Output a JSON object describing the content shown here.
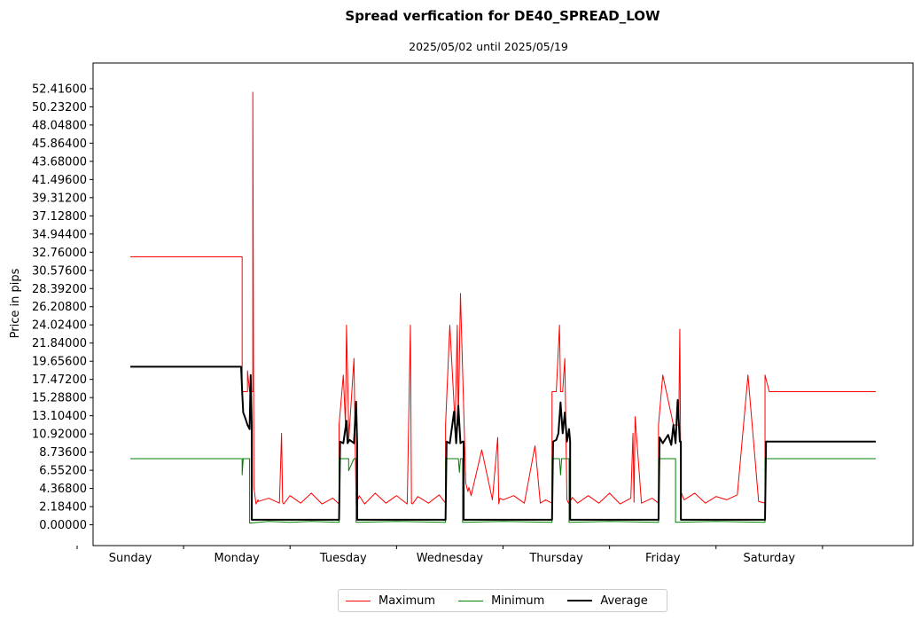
{
  "chart_data": {
    "type": "line",
    "title": "Spread verfication for DE40_SPREAD_LOW",
    "subtitle": "2025/05/02 until 2025/05/19",
    "xlabel": "",
    "ylabel": "Price in pips",
    "ylim": [
      -2.5,
      55.5
    ],
    "yticks": [
      "0.00000",
      "2.18400",
      "4.36800",
      "6.55200",
      "8.73600",
      "10.92000",
      "13.10400",
      "15.28800",
      "17.47200",
      "19.65600",
      "21.84000",
      "24.02400",
      "26.20800",
      "28.39200",
      "30.57600",
      "32.76000",
      "34.94400",
      "37.12800",
      "39.31200",
      "41.49600",
      "43.68000",
      "45.86400",
      "48.04800",
      "50.23200",
      "52.41600"
    ],
    "xlim": [
      -0.35,
      7.35
    ],
    "categories": [
      "Sunday",
      "Monday",
      "Tuesday",
      "Wednesday",
      "Thursday",
      "Friday",
      "Saturday"
    ],
    "grid": false,
    "legend_position": "bottom-center",
    "series": [
      {
        "name": "Maximum",
        "color": "#ff0000",
        "x": [
          0,
          1.05,
          1.05,
          1.08,
          1.1,
          1.1,
          1.12,
          1.15,
          1.15,
          1.16,
          1.18,
          1.2,
          1.2,
          1.3,
          1.4,
          1.42,
          1.43,
          1.44,
          1.5,
          1.6,
          1.7,
          1.8,
          1.9,
          1.96,
          1.96,
          2.0,
          2.02,
          2.03,
          2.05,
          2.05,
          2.1,
          2.12,
          2.13,
          2.15,
          2.2,
          2.3,
          2.4,
          2.5,
          2.6,
          2.63,
          2.64,
          2.65,
          2.7,
          2.8,
          2.9,
          2.96,
          2.96,
          3.0,
          3.05,
          3.07,
          3.08,
          3.1,
          3.15,
          3.17,
          3.18,
          3.2,
          3.3,
          3.4,
          3.45,
          3.46,
          3.47,
          3.5,
          3.6,
          3.7,
          3.8,
          3.85,
          3.9,
          3.96,
          3.96,
          4.0,
          4.03,
          4.04,
          4.06,
          4.08,
          4.1,
          4.12,
          4.13,
          4.15,
          4.2,
          4.3,
          4.4,
          4.5,
          4.6,
          4.7,
          4.72,
          4.73,
          4.74,
          4.8,
          4.9,
          4.96,
          4.96,
          5.0,
          5.1,
          5.15,
          5.16,
          5.17,
          5.2,
          5.3,
          5.4,
          5.5,
          5.6,
          5.7,
          5.8,
          5.9,
          5.96,
          5.96,
          6.0,
          6.0,
          7.0
        ],
        "values": [
          32.2,
          32.2,
          16.0,
          16.0,
          16.0,
          18.5,
          16.0,
          16.0,
          52.0,
          4.5,
          2.5,
          3.0,
          2.8,
          3.2,
          2.6,
          11.0,
          2.7,
          2.5,
          3.5,
          2.6,
          3.8,
          2.5,
          3.2,
          2.5,
          12.0,
          18.0,
          12.0,
          24.0,
          12.0,
          10.0,
          20.0,
          2.4,
          2.8,
          3.5,
          2.5,
          3.8,
          2.6,
          3.5,
          2.5,
          24.0,
          2.6,
          2.5,
          3.4,
          2.6,
          3.6,
          2.6,
          12.0,
          24.0,
          12.0,
          24.0,
          12.0,
          27.8,
          5.0,
          4.0,
          4.5,
          3.5,
          9.0,
          3.0,
          10.5,
          2.5,
          3.2,
          3.0,
          3.5,
          2.6,
          9.5,
          2.6,
          3.0,
          2.6,
          16.0,
          16.0,
          24.0,
          16.0,
          16.0,
          20.0,
          3.0,
          2.5,
          2.8,
          3.3,
          2.6,
          3.5,
          2.6,
          3.8,
          2.5,
          3.2,
          11.0,
          2.7,
          13.0,
          2.6,
          3.2,
          2.6,
          12.0,
          18.0,
          12.0,
          12.0,
          23.5,
          4.0,
          3.0,
          3.8,
          2.6,
          3.4,
          3.0,
          3.6,
          18.0,
          2.8,
          2.6,
          18.0,
          16.0,
          16.0,
          16.0
        ]
      },
      {
        "name": "Minimum",
        "color": "#008000",
        "x": [
          0,
          1.05,
          1.05,
          1.06,
          1.1,
          1.12,
          1.12,
          1.3,
          1.5,
          1.7,
          1.96,
          1.96,
          2.05,
          2.05,
          2.1,
          2.12,
          2.12,
          2.5,
          2.96,
          2.96,
          3.08,
          3.09,
          3.1,
          3.12,
          3.12,
          3.5,
          3.96,
          3.96,
          4.03,
          4.04,
          4.05,
          4.12,
          4.12,
          4.5,
          4.96,
          4.96,
          5.1,
          5.12,
          5.12,
          5.5,
          5.96,
          5.96,
          7.0
        ],
        "values": [
          7.95,
          7.95,
          6.0,
          7.95,
          7.95,
          7.95,
          0.2,
          0.4,
          0.3,
          0.4,
          0.3,
          7.95,
          7.95,
          6.5,
          7.95,
          7.95,
          0.3,
          0.4,
          0.3,
          7.95,
          7.95,
          6.3,
          7.95,
          7.95,
          0.3,
          0.4,
          0.3,
          7.95,
          7.95,
          6.0,
          7.95,
          7.95,
          0.3,
          0.4,
          0.3,
          7.95,
          7.95,
          7.95,
          0.3,
          0.4,
          0.3,
          7.95,
          7.95
        ]
      },
      {
        "name": "Average",
        "color": "#000000",
        "x": [
          0,
          1.04,
          1.05,
          1.06,
          1.08,
          1.1,
          1.12,
          1.13,
          1.14,
          1.14,
          1.3,
          1.5,
          1.7,
          1.96,
          1.97,
          2.0,
          2.03,
          2.04,
          2.06,
          2.1,
          2.12,
          2.13,
          2.13,
          2.5,
          2.96,
          2.97,
          3.0,
          3.04,
          3.06,
          3.08,
          3.1,
          3.12,
          3.13,
          3.13,
          3.5,
          3.96,
          3.97,
          4.0,
          4.02,
          4.04,
          4.06,
          4.08,
          4.1,
          4.12,
          4.13,
          4.13,
          4.5,
          4.96,
          4.97,
          5.0,
          5.05,
          5.08,
          5.1,
          5.12,
          5.14,
          5.16,
          5.17,
          5.17,
          5.5,
          5.96,
          5.97,
          6.0,
          7.0
        ],
        "values": [
          19.0,
          19.0,
          16.0,
          13.5,
          12.8,
          12.0,
          11.5,
          18.0,
          12.0,
          0.6,
          0.6,
          0.6,
          0.6,
          0.6,
          10.0,
          9.8,
          12.5,
          9.8,
          10.2,
          9.8,
          14.8,
          9.8,
          0.6,
          0.6,
          0.6,
          10.0,
          9.8,
          13.6,
          9.8,
          14.3,
          9.8,
          10.0,
          10.0,
          0.6,
          0.6,
          0.6,
          10.0,
          10.2,
          11.0,
          14.7,
          11.0,
          13.5,
          10.0,
          11.5,
          10.0,
          0.6,
          0.6,
          0.6,
          10.5,
          9.8,
          10.8,
          9.6,
          12.0,
          9.8,
          15.0,
          10.0,
          10.0,
          0.6,
          0.6,
          0.6,
          10.0,
          10.0,
          10.0
        ]
      }
    ]
  },
  "legend": {
    "items": [
      {
        "label": "Maximum",
        "color": "#ff0000"
      },
      {
        "label": "Minimum",
        "color": "#008000"
      },
      {
        "label": "Average",
        "color": "#000000"
      }
    ]
  }
}
